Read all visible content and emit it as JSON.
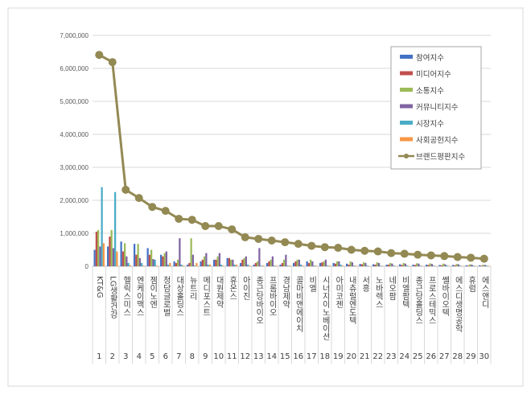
{
  "chart_data": {
    "type": "bar",
    "title": "",
    "xlabel": "",
    "ylabel": "",
    "ylim": [
      0,
      7000000
    ],
    "yticks": [
      "0",
      "1,000,000",
      "2,000,000",
      "3,000,000",
      "4,000,000",
      "5,000,000",
      "6,000,000",
      "7,000,000"
    ],
    "grid": true,
    "legend_position": "top-right",
    "ranks": [
      "1",
      "2",
      "3",
      "4",
      "5",
      "6",
      "7",
      "8",
      "9",
      "10",
      "11",
      "12",
      "13",
      "14",
      "15",
      "16",
      "17",
      "18",
      "19",
      "20",
      "21",
      "22",
      "23",
      "24",
      "25",
      "26",
      "27",
      "28",
      "29",
      "30"
    ],
    "categories": [
      "KT&G",
      "LG생활건강",
      "헬릭스미스",
      "엔케이맥스",
      "젬이노엔",
      "청담글로벌",
      "대상홀딩스",
      "뉴트리",
      "메디포스트",
      "대원제약",
      "휴온스",
      "아이진",
      "종근당바이오",
      "프롬바이오",
      "경남제약",
      "콜마비앤에이치",
      "비엘",
      "시너지이노베이션",
      "아미코젠",
      "내츄럴엔도텍",
      "서흥",
      "노바렉스",
      "네오팜",
      "비엘팜텍",
      "종근당홀딩스",
      "프로스테믹스",
      "쎌바이오텍",
      "에스디생명공학",
      "휴럼",
      "에스앤디"
    ],
    "series": [
      {
        "name": "참여지수",
        "type": "bar",
        "color": "#4472C4",
        "values": [
          500000,
          600000,
          750000,
          680000,
          550000,
          350000,
          150000,
          50000,
          150000,
          200000,
          250000,
          100000,
          50000,
          100000,
          50000,
          100000,
          150000,
          100000,
          100000,
          80000,
          70000,
          60000,
          50000,
          60000,
          50000,
          50000,
          40000,
          40000,
          30000,
          30000
        ]
      },
      {
        "name": "미디어지수",
        "type": "bar",
        "color": "#C0504D",
        "values": [
          1050000,
          900000,
          450000,
          350000,
          350000,
          300000,
          100000,
          100000,
          200000,
          200000,
          250000,
          200000,
          100000,
          150000,
          100000,
          150000,
          100000,
          120000,
          80000,
          50000,
          60000,
          50000,
          50000,
          40000,
          40000,
          40000,
          30000,
          30000,
          20000,
          20000
        ]
      },
      {
        "name": "소통지수",
        "type": "bar",
        "color": "#9BBB59",
        "values": [
          1100000,
          1100000,
          700000,
          680000,
          500000,
          400000,
          200000,
          850000,
          300000,
          300000,
          200000,
          250000,
          150000,
          200000,
          200000,
          200000,
          200000,
          150000,
          150000,
          150000,
          120000,
          120000,
          100000,
          100000,
          90000,
          90000,
          80000,
          70000,
          60000,
          50000
        ]
      },
      {
        "name": "커뮤니티지수",
        "type": "bar",
        "color": "#8064A2",
        "values": [
          600000,
          550000,
          300000,
          250000,
          220000,
          450000,
          850000,
          350000,
          400000,
          400000,
          200000,
          300000,
          550000,
          300000,
          350000,
          200000,
          150000,
          200000,
          150000,
          120000,
          100000,
          100000,
          80000,
          80000,
          80000,
          70000,
          60000,
          60000,
          50000,
          40000
        ]
      },
      {
        "name": "시장지수",
        "type": "bar",
        "color": "#4BACC6",
        "values": [
          2400000,
          2250000,
          100000,
          100000,
          200000,
          50000,
          50000,
          20000,
          50000,
          50000,
          50000,
          50000,
          20000,
          20000,
          20000,
          50000,
          20000,
          20000,
          50000,
          20000,
          20000,
          20000,
          20000,
          20000,
          20000,
          20000,
          20000,
          20000,
          20000,
          20000
        ]
      },
      {
        "name": "사회공헌지수",
        "type": "bar",
        "color": "#F79646",
        "values": [
          700000,
          450000,
          30000,
          20000,
          20000,
          100000,
          20000,
          100000,
          50000,
          20000,
          50000,
          20000,
          20000,
          20000,
          20000,
          20000,
          20000,
          20000,
          20000,
          20000,
          10000,
          10000,
          10000,
          10000,
          10000,
          10000,
          10000,
          10000,
          10000,
          10000
        ]
      },
      {
        "name": "브랜드평판지수",
        "type": "line",
        "color": "#938953",
        "values": [
          6410000,
          6190000,
          2320000,
          2070000,
          1800000,
          1680000,
          1440000,
          1410000,
          1220000,
          1220000,
          1120000,
          880000,
          830000,
          780000,
          730000,
          680000,
          620000,
          580000,
          560000,
          500000,
          470000,
          450000,
          400000,
          380000,
          350000,
          330000,
          310000,
          280000,
          260000,
          230000
        ]
      }
    ]
  }
}
